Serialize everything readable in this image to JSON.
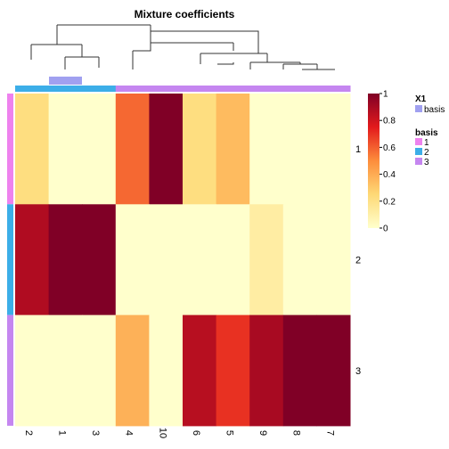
{
  "chart_data": {
    "type": "heatmap",
    "title": "Mixture coefficients",
    "columns": [
      "2",
      "1",
      "3",
      "4",
      "10",
      "6",
      "5",
      "9",
      "8",
      "7"
    ],
    "rows": [
      "1",
      "2",
      "3"
    ],
    "values": [
      [
        0.22,
        0.0,
        0.0,
        0.58,
        1.0,
        0.22,
        0.35,
        0.0,
        0.0,
        0.0
      ],
      [
        0.88,
        1.0,
        1.0,
        0.0,
        0.0,
        0.0,
        0.0,
        0.12,
        0.0,
        0.0
      ],
      [
        0.0,
        0.0,
        0.0,
        0.38,
        0.0,
        0.86,
        0.7,
        0.9,
        1.0,
        1.0
      ]
    ],
    "row_basis": [
      "1",
      "2",
      "3"
    ],
    "column_basis": [
      "2",
      "2",
      "2",
      "3",
      "3",
      "3",
      "3",
      "3",
      "3",
      "3"
    ],
    "scale": {
      "min": 0,
      "max": 1,
      "ticks": [
        "0",
        "0.2",
        "0.4",
        "0.6",
        "0.8",
        "1"
      ]
    },
    "legend": {
      "x1_title": "X1",
      "x1_entry": "basis",
      "basis_title": "basis",
      "basis_entries": [
        "1",
        "2",
        "3"
      ]
    },
    "colors": {
      "basis_1": "#ee82ee",
      "basis_2": "#3caee8",
      "basis_3": "#c586f0",
      "x1_basis": "#a0a0f0",
      "scale_low": "#ffffcc",
      "scale_mid1": "#fed976",
      "scale_mid2": "#fd8d3c",
      "scale_mid3": "#e31a1c",
      "scale_high": "#800026"
    }
  }
}
